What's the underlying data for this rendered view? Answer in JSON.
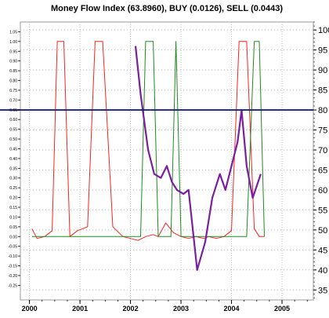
{
  "chart_data": {
    "type": "line",
    "title": "Money Flow Index (63.8960), BUY (0.0126), SELL (0.0443)",
    "colors": {
      "mfi": "#7a1fa2",
      "buy": "#1f8a1f",
      "sell": "#ff2020",
      "threshold": "#1a237e",
      "grid": "#bbbbbb"
    },
    "x_range": [
      1999.82,
      2005.62
    ],
    "x_ticks": [
      {
        "value": 2000,
        "label": "2000"
      },
      {
        "value": 2001,
        "label": "2001"
      },
      {
        "value": 2002,
        "label": "2002"
      },
      {
        "value": 2003,
        "label": "2003"
      },
      {
        "value": 2004,
        "label": "2004"
      },
      {
        "value": 2005,
        "label": "2005"
      }
    ],
    "y_right": {
      "range": [
        32.5,
        102
      ],
      "ticks": [
        "35",
        "40",
        "45",
        "50",
        "55",
        "60",
        "65",
        "70",
        "75",
        "80",
        "85",
        "90",
        "95",
        "100"
      ]
    },
    "y_left": {
      "range": [
        -0.325,
        1.1
      ],
      "ticks": [
        "-0.25",
        "-0.20",
        "-0.15",
        "-0.10",
        "-0.05",
        "0.00",
        "0.05",
        "0.10",
        "0.15",
        "0.20",
        "0.25",
        "0.30",
        "0.35",
        "0.40",
        "0.45",
        "0.50",
        "0.55",
        "0.60",
        "0.65",
        "0.70",
        "0.75",
        "0.80",
        "0.85",
        "0.90",
        "0.95",
        "1.00",
        "1.05"
      ]
    },
    "threshold": 80,
    "series": [
      {
        "key": "sell",
        "axis": "left",
        "x": [
          2000.05,
          2000.15,
          2000.3,
          2000.45,
          2000.55,
          2000.68,
          2000.8,
          2000.95,
          2001.15,
          2001.3,
          2001.45,
          2001.65,
          2001.85,
          2002.0,
          2002.15,
          2002.3,
          2002.45,
          2002.55,
          2002.7,
          2002.85,
          2003.0,
          2003.15,
          2003.3,
          2003.45,
          2003.55,
          2003.7,
          2003.85,
          2004.0,
          2004.15,
          2004.3,
          2004.45,
          2004.55,
          2004.65
        ],
        "y": [
          0.04,
          -0.01,
          0.0,
          0.03,
          1.0,
          1.0,
          0.0,
          0.03,
          0.05,
          1.0,
          1.0,
          0.05,
          0.0,
          -0.01,
          -0.02,
          0.0,
          0.01,
          0.0,
          0.07,
          0.02,
          0.0,
          -0.01,
          0.0,
          -0.01,
          0.0,
          -0.01,
          0.0,
          0.03,
          1.0,
          1.0,
          0.04,
          0.0,
          0.0
        ]
      },
      {
        "key": "buy",
        "axis": "left",
        "x": [
          2000.05,
          2000.3,
          2000.6,
          2000.9,
          2001.2,
          2001.45,
          2001.75,
          2001.95,
          2002.2,
          2002.3,
          2002.45,
          2002.55,
          2002.8,
          2002.9,
          2003.0,
          2003.05,
          2003.15,
          2003.25,
          2003.3,
          2003.45,
          2003.6,
          2003.85,
          2004.0,
          2004.15,
          2004.3,
          2004.45,
          2004.55,
          2004.65
        ],
        "y": [
          0.0,
          0.0,
          0.0,
          0.0,
          0.0,
          0.0,
          0.0,
          0.0,
          0.0,
          1.0,
          1.0,
          0.0,
          0.0,
          1.0,
          0.0,
          0.0,
          0.0,
          0.0,
          0.0,
          0.0,
          0.0,
          0.0,
          0.0,
          0.0,
          0.0,
          1.0,
          1.0,
          0.0
        ]
      },
      {
        "key": "mfi",
        "axis": "right",
        "x": [
          2002.1,
          2002.2,
          2002.35,
          2002.47,
          2002.6,
          2002.72,
          2002.82,
          2002.92,
          2003.05,
          2003.15,
          2003.32,
          2003.48,
          2003.62,
          2003.77,
          2003.88,
          2003.98,
          2004.12,
          2004.2,
          2004.3,
          2004.42,
          2004.58
        ],
        "y": [
          96,
          84,
          70,
          64,
          63,
          66,
          62,
          60,
          59,
          60,
          40,
          47,
          58,
          64,
          60,
          65,
          72,
          80,
          66,
          58,
          64
        ]
      }
    ]
  }
}
